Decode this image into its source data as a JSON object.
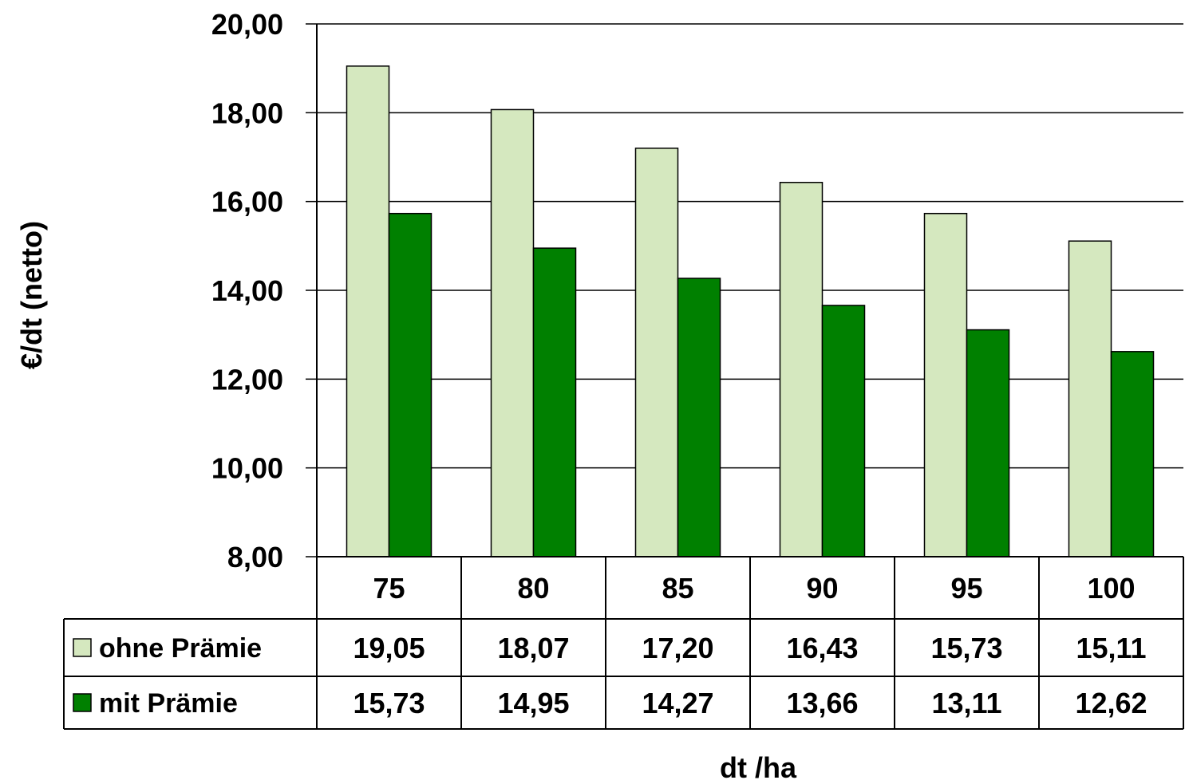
{
  "chart_data": {
    "type": "bar",
    "title": "",
    "xlabel": "dt /ha",
    "ylabel": "€/dt (netto)",
    "categories": [
      "75",
      "80",
      "85",
      "90",
      "95",
      "100"
    ],
    "ylim": [
      8,
      20
    ],
    "yticks": [
      {
        "value": 8,
        "label": "8,00"
      },
      {
        "value": 10,
        "label": "10,00"
      },
      {
        "value": 12,
        "label": "12,00"
      },
      {
        "value": 14,
        "label": "14,00"
      },
      {
        "value": 16,
        "label": "16,00"
      },
      {
        "value": 18,
        "label": "18,00"
      },
      {
        "value": 20,
        "label": "20,00"
      }
    ],
    "grid": true,
    "legend": "data-table",
    "series": [
      {
        "name": "ohne Prämie",
        "color": "#d5e8bf",
        "values": [
          19.05,
          18.07,
          17.2,
          16.43,
          15.73,
          15.11
        ],
        "labels": [
          "19,05",
          "18,07",
          "17,20",
          "16,43",
          "15,73",
          "15,11"
        ]
      },
      {
        "name": "mit Prämie",
        "color": "#008000",
        "values": [
          15.73,
          14.95,
          14.27,
          13.66,
          13.11,
          12.62
        ],
        "labels": [
          "15,73",
          "14,95",
          "14,27",
          "13,66",
          "13,11",
          "12,62"
        ]
      }
    ]
  }
}
